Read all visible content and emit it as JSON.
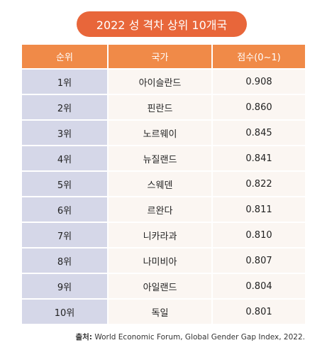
{
  "title": "2022 성 격차 상위 10개국",
  "table": {
    "headers": [
      "순위",
      "국가",
      "점수(0~1)"
    ],
    "rows": [
      {
        "rank": "1위",
        "country": "아이슬란드",
        "score": "0.908"
      },
      {
        "rank": "2위",
        "country": "핀란드",
        "score": "0.860"
      },
      {
        "rank": "3위",
        "country": "노르웨이",
        "score": "0.845"
      },
      {
        "rank": "4위",
        "country": "뉴질랜드",
        "score": "0.841"
      },
      {
        "rank": "5위",
        "country": "스웨덴",
        "score": "0.822"
      },
      {
        "rank": "6위",
        "country": "르완다",
        "score": "0.811"
      },
      {
        "rank": "7위",
        "country": "니카라과",
        "score": "0.810"
      },
      {
        "rank": "8위",
        "country": "나미비아",
        "score": "0.807"
      },
      {
        "rank": "9위",
        "country": "아일랜드",
        "score": "0.804"
      },
      {
        "rank": "10위",
        "country": "독일",
        "score": "0.801"
      }
    ]
  },
  "source": {
    "label": "출처:",
    "text": " World Economic Forum, Global Gender Gap Index, 2022."
  },
  "colors": {
    "title_background": "#e8663a",
    "header_background": "#f08a48",
    "rank_column_background": "#d5d7e8",
    "body_background": "#fbf6f2"
  }
}
